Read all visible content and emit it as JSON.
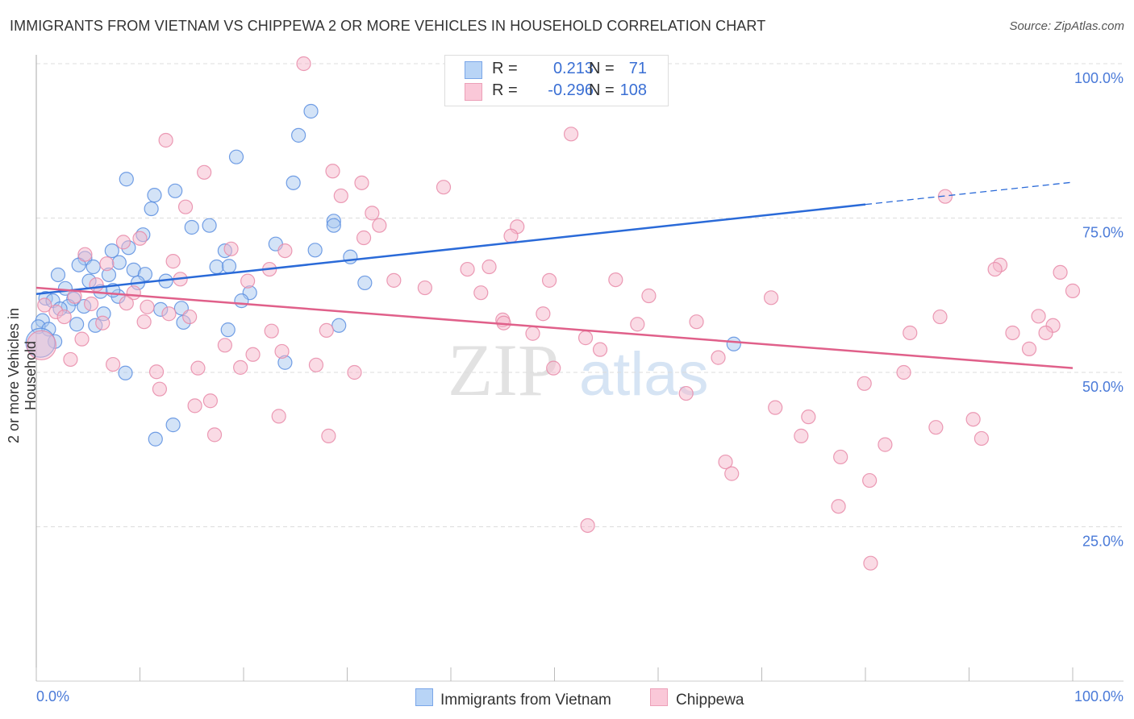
{
  "title": "IMMIGRANTS FROM VIETNAM VS CHIPPEWA 2 OR MORE VEHICLES IN HOUSEHOLD CORRELATION CHART",
  "source": "Source: ZipAtlas.com",
  "watermark": "ZIPatlas",
  "legend": [
    {
      "r_label": "R =",
      "r": "0.213",
      "n_label": "N =",
      "n": "71",
      "color": "#a8c8f0",
      "stroke": "#5a8ee0"
    },
    {
      "r_label": "R =",
      "r": "-0.296",
      "n_label": "N =",
      "n": "108",
      "color": "#f6b8cc",
      "stroke": "#e88aa8"
    }
  ],
  "chart_data": {
    "type": "scatter",
    "title": "IMMIGRANTS FROM VIETNAM VS CHIPPEWA 2 OR MORE VEHICLES IN HOUSEHOLD CORRELATION CHART",
    "xlabel": "",
    "ylabel": "2 or more Vehicles in Household",
    "xlim": [
      0,
      100
    ],
    "ylim": [
      0,
      100
    ],
    "x_tick_labels": [
      "0.0%",
      "100.0%"
    ],
    "y_tick_labels": [
      {
        "v": 100,
        "label": "100.0%"
      },
      {
        "v": 75,
        "label": "75.0%"
      },
      {
        "v": 50,
        "label": "50.0%"
      },
      {
        "v": 25,
        "label": "25.0%"
      }
    ],
    "grid": true,
    "legend_position": "bottom",
    "series": [
      {
        "name": "Immigrants from Vietnam",
        "color": "#5a8ee0",
        "fill": "#a8c8f0",
        "trend": {
          "x": [
            0,
            80
          ],
          "y": [
            62.7,
            77.2
          ],
          "dash_to": {
            "x": 100,
            "y": 80.8
          }
        },
        "points": [
          [
            8.7,
            81.3
          ],
          [
            19.3,
            84.9
          ],
          [
            26.5,
            92.3
          ],
          [
            25.3,
            88.4
          ],
          [
            24.8,
            80.7
          ],
          [
            11.4,
            78.7
          ],
          [
            13.4,
            79.4
          ],
          [
            11.1,
            76.5
          ],
          [
            15.0,
            73.5
          ],
          [
            16.7,
            73.8
          ],
          [
            28.7,
            74.5
          ],
          [
            28.7,
            73.8
          ],
          [
            10.3,
            72.3
          ],
          [
            23.1,
            70.8
          ],
          [
            26.9,
            69.8
          ],
          [
            18.2,
            69.7
          ],
          [
            30.3,
            68.7
          ],
          [
            7.3,
            69.7
          ],
          [
            8.9,
            70.2
          ],
          [
            4.7,
            68.5
          ],
          [
            4.1,
            67.4
          ],
          [
            5.5,
            67.1
          ],
          [
            8.0,
            67.8
          ],
          [
            9.4,
            66.6
          ],
          [
            2.1,
            65.8
          ],
          [
            7.0,
            65.8
          ],
          [
            10.5,
            65.9
          ],
          [
            17.4,
            67.1
          ],
          [
            18.6,
            67.2
          ],
          [
            12.5,
            64.8
          ],
          [
            5.1,
            64.8
          ],
          [
            9.8,
            64.5
          ],
          [
            31.7,
            64.5
          ],
          [
            2.8,
            63.6
          ],
          [
            6.2,
            63.1
          ],
          [
            7.9,
            62.3
          ],
          [
            20.6,
            62.9
          ],
          [
            0.9,
            62.0
          ],
          [
            1.6,
            61.6
          ],
          [
            3.6,
            61.9
          ],
          [
            19.8,
            61.6
          ],
          [
            3.1,
            60.7
          ],
          [
            2.3,
            60.3
          ],
          [
            4.6,
            60.7
          ],
          [
            6.5,
            59.5
          ],
          [
            12.0,
            60.2
          ],
          [
            14.0,
            60.4
          ],
          [
            14.2,
            58.1
          ],
          [
            3.9,
            57.8
          ],
          [
            5.7,
            57.6
          ],
          [
            29.2,
            57.6
          ],
          [
            0.6,
            58.4
          ],
          [
            0.2,
            57.4
          ],
          [
            1.2,
            57.0
          ],
          [
            18.5,
            56.9
          ],
          [
            1.8,
            55.0
          ],
          [
            0.4,
            54.8,
            "L"
          ],
          [
            67.3,
            54.6
          ],
          [
            24.0,
            51.6
          ],
          [
            8.6,
            49.9
          ],
          [
            13.2,
            41.5
          ],
          [
            11.5,
            39.2
          ],
          [
            7.4,
            63.3
          ]
        ]
      },
      {
        "name": "Chippewa",
        "color": "#e88aa8",
        "fill": "#f6b8cc",
        "trend": {
          "x": [
            0,
            100
          ],
          "y": [
            63.7,
            50.7
          ]
        },
        "points": [
          [
            25.8,
            100
          ],
          [
            51.6,
            88.6
          ],
          [
            12.5,
            87.6
          ],
          [
            16.2,
            82.4
          ],
          [
            28.6,
            82.6
          ],
          [
            31.4,
            80.7
          ],
          [
            39.3,
            80.0
          ],
          [
            29.4,
            78.6
          ],
          [
            14.4,
            76.8
          ],
          [
            87.7,
            78.5
          ],
          [
            32.4,
            75.8
          ],
          [
            33.1,
            73.8
          ],
          [
            46.4,
            73.6
          ],
          [
            45.8,
            72.1
          ],
          [
            31.6,
            71.8
          ],
          [
            10.0,
            71.7
          ],
          [
            8.4,
            71.1
          ],
          [
            18.8,
            70.0
          ],
          [
            24.0,
            69.7
          ],
          [
            4.7,
            69.1
          ],
          [
            13.2,
            68.0
          ],
          [
            6.8,
            67.6
          ],
          [
            43.7,
            67.1
          ],
          [
            41.6,
            66.7
          ],
          [
            93.0,
            67.4
          ],
          [
            92.5,
            66.7
          ],
          [
            98.8,
            66.2
          ],
          [
            22.5,
            66.7
          ],
          [
            13.9,
            65.1
          ],
          [
            34.5,
            64.9
          ],
          [
            49.5,
            64.9
          ],
          [
            55.9,
            65.0
          ],
          [
            20.4,
            64.8
          ],
          [
            37.5,
            63.7
          ],
          [
            100,
            63.2
          ],
          [
            5.8,
            64.2
          ],
          [
            42.9,
            62.9
          ],
          [
            9.4,
            62.9
          ],
          [
            59.1,
            62.4
          ],
          [
            70.9,
            62.1
          ],
          [
            3.7,
            62.3
          ],
          [
            8.7,
            61.2
          ],
          [
            0.8,
            60.9
          ],
          [
            10.7,
            60.6
          ],
          [
            5.3,
            61.1
          ],
          [
            1.9,
            59.8
          ],
          [
            48.9,
            59.5
          ],
          [
            87.2,
            59.0
          ],
          [
            96.7,
            59.1
          ],
          [
            14.8,
            59.0
          ],
          [
            12.8,
            59.5
          ],
          [
            2.7,
            59.0
          ],
          [
            45.0,
            58.5
          ],
          [
            45.1,
            58.0
          ],
          [
            63.7,
            58.2
          ],
          [
            58.0,
            57.8
          ],
          [
            10.4,
            58.2
          ],
          [
            6.4,
            58.0
          ],
          [
            98.1,
            57.6
          ],
          [
            22.7,
            56.7
          ],
          [
            28.0,
            56.8
          ],
          [
            47.9,
            56.3
          ],
          [
            84.3,
            56.4
          ],
          [
            94.2,
            56.4
          ],
          [
            97.4,
            56.4
          ],
          [
            53.0,
            55.6
          ],
          [
            4.4,
            55.4
          ],
          [
            18.2,
            54.4
          ],
          [
            54.4,
            53.7
          ],
          [
            23.7,
            53.4
          ],
          [
            95.8,
            53.8
          ],
          [
            20.9,
            52.9
          ],
          [
            65.8,
            52.4
          ],
          [
            3.3,
            52.1
          ],
          [
            7.4,
            51.3
          ],
          [
            27.0,
            51.2
          ],
          [
            15.6,
            50.7
          ],
          [
            19.7,
            50.8
          ],
          [
            49.9,
            50.7
          ],
          [
            11.6,
            50.1
          ],
          [
            30.7,
            50.0
          ],
          [
            83.7,
            50.0
          ],
          [
            79.9,
            48.2
          ],
          [
            11.9,
            47.3
          ],
          [
            62.7,
            46.6
          ],
          [
            15.3,
            44.6
          ],
          [
            16.8,
            45.4
          ],
          [
            71.3,
            44.3
          ],
          [
            23.4,
            42.9
          ],
          [
            74.5,
            42.8
          ],
          [
            90.4,
            42.4
          ],
          [
            86.8,
            41.1
          ],
          [
            17.2,
            39.9
          ],
          [
            28.2,
            39.7
          ],
          [
            73.8,
            39.7
          ],
          [
            91.2,
            39.3
          ],
          [
            81.9,
            38.3
          ],
          [
            77.6,
            36.3
          ],
          [
            66.5,
            35.5
          ],
          [
            67.1,
            33.6
          ],
          [
            80.4,
            32.5
          ],
          [
            77.4,
            28.3
          ],
          [
            53.2,
            25.2
          ],
          [
            80.5,
            19.1
          ],
          [
            0.5,
            54.4,
            "L"
          ]
        ]
      }
    ]
  }
}
